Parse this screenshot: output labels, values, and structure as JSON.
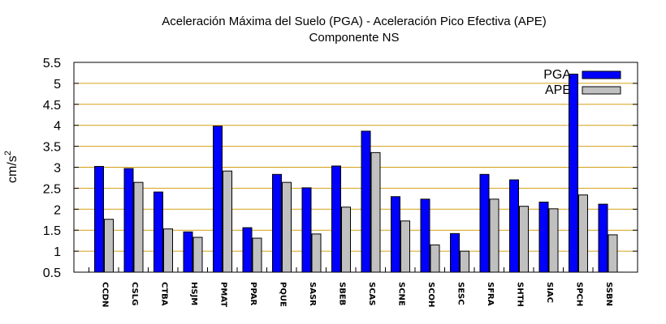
{
  "chart_data": {
    "type": "bar",
    "title": "Aceleración Máxima del Suelo (PGA) -  Aceleración Pico Efectiva (APE)",
    "subtitle": "Componente NS",
    "ylabel": "cm/s",
    "ylabel_exponent": "2",
    "xlabel": "",
    "ylim": [
      0.5,
      5.5
    ],
    "yticks": [
      "0.5",
      "1",
      "1.5",
      "2",
      "2.5",
      "3",
      "3.5",
      "4",
      "4.5",
      "5",
      "5.5"
    ],
    "grid": "horizontal",
    "legend_position": "top-right",
    "categories": [
      "CCDN",
      "CSLG",
      "CTBA",
      "HSJM",
      "PMAT",
      "PPAR",
      "PQUE",
      "SASR",
      "SBEB",
      "SCAS",
      "SCNE",
      "SCOH",
      "SESC",
      "SFRA",
      "SHTH",
      "SIAC",
      "SPCH",
      "SSBN"
    ],
    "series": [
      {
        "name": "PGA",
        "color": "#0000ff",
        "values": [
          3.02,
          2.97,
          2.41,
          1.46,
          3.98,
          1.56,
          2.83,
          2.51,
          3.03,
          3.86,
          2.3,
          2.24,
          1.42,
          2.83,
          2.7,
          2.17,
          5.22,
          2.12
        ]
      },
      {
        "name": "APE",
        "color": "#c0c0c0",
        "values": [
          1.76,
          2.64,
          1.53,
          1.33,
          2.91,
          1.31,
          2.64,
          1.41,
          2.05,
          3.35,
          1.72,
          1.15,
          1.0,
          2.24,
          2.07,
          2.01,
          2.34,
          1.39
        ]
      }
    ]
  }
}
